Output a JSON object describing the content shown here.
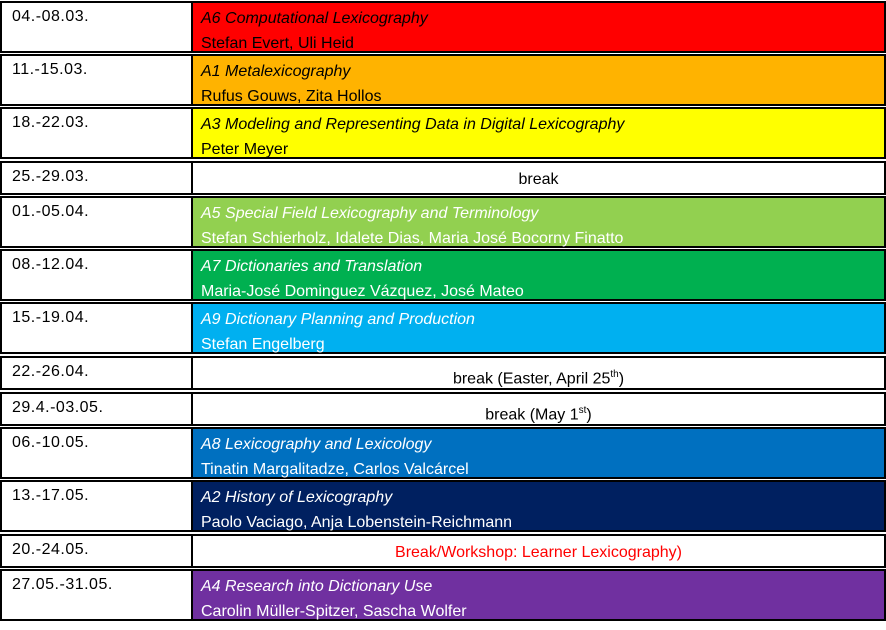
{
  "schedule": {
    "rows": [
      {
        "date": "04.-08.03.",
        "title": "A6 Computational Lexicography",
        "people": "Stefan Evert, Uli Heid",
        "color": "#ff0000",
        "text_color": "#000000"
      },
      {
        "date": "11.-15.03.",
        "title": "A1 Metalexicography",
        "people": "Rufus Gouws, Zita Hollos",
        "color": "#ffb300",
        "text_color": "#000000"
      },
      {
        "date": "18.-22.03.",
        "title": "A3 Modeling and Representing Data in Digital Lexicography",
        "people": "Peter Meyer",
        "color": "#ffff00",
        "text_color": "#000000"
      },
      {
        "date": "25.-29.03.",
        "note": "break",
        "note_color": "#000000"
      },
      {
        "date": "01.-05.04.",
        "title": "A5 Special Field Lexicography and Terminology",
        "people": "Stefan Schierholz, Idalete Dias, Maria José Bocorny Finatto",
        "color": "#92d050",
        "text_color": "#ffffff"
      },
      {
        "date": "08.-12.04.",
        "title": "A7 Dictionaries and Translation",
        "people": "Maria-José Dominguez Vázquez, José Mateo",
        "color": "#00b050",
        "text_color": "#ffffff"
      },
      {
        "date": "15.-19.04.",
        "title": "A9 Dictionary Planning and Production",
        "people": "Stefan Engelberg",
        "color": "#00b0f0",
        "text_color": "#ffffff"
      },
      {
        "date": "22.-26.04.",
        "note": "break (Easter, April 25",
        "sup": "th",
        "after": ")",
        "note_color": "#000000"
      },
      {
        "date": "29.4.-03.05.",
        "note": "break (May 1",
        "sup": "st",
        "after": ")",
        "note_color": "#000000"
      },
      {
        "date": "06.-10.05.",
        "title": "A8 Lexicography and Lexicology",
        "people": "Tinatin Margalitadze, Carlos Valcárcel",
        "color": "#0070c0",
        "text_color": "#ffffff"
      },
      {
        "date": "13.-17.05.",
        "title": "A2 History of Lexicography",
        "people": "Paolo Vaciago, Anja Lobenstein-Reichmann",
        "color": "#002060",
        "text_color": "#ffffff"
      },
      {
        "date": "20.-24.05.",
        "note": "Break/Workshop: Learner Lexicography)",
        "note_color": "#ff0000"
      },
      {
        "date": "27.05.-31.05.",
        "title": "A4 Research into Dictionary Use",
        "people": "Carolin Müller-Spitzer, Sascha Wolfer",
        "color": "#7030a0",
        "text_color": "#ffffff"
      }
    ]
  }
}
